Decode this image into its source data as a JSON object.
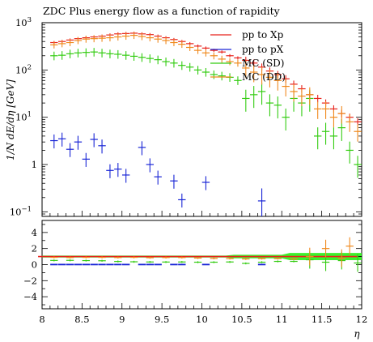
{
  "chart_data": [
    {
      "type": "scatter",
      "title": "ZDC Plus energy flow as a function of rapidity",
      "xlabel": "η",
      "ylabel": "1/N dE/dη [GeV]",
      "xlim": [
        8,
        12
      ],
      "ylim": [
        0.08,
        1000
      ],
      "yscale": "log",
      "x_ticks": [
        "8",
        "8.5",
        "9",
        "9.5",
        "10",
        "10.5",
        "11",
        "11.5",
        "12"
      ],
      "y_ticks": [
        "10^-1",
        "1",
        "10",
        "10^2",
        "10^3"
      ],
      "legend_position": "top-right",
      "series": [
        {
          "name": "pp to Xp",
          "color": "#e8231c",
          "x": [
            8.15,
            8.25,
            8.35,
            8.45,
            8.55,
            8.65,
            8.75,
            8.85,
            8.95,
            9.05,
            9.15,
            9.25,
            9.35,
            9.45,
            9.55,
            9.65,
            9.75,
            9.85,
            9.95,
            10.05,
            10.15,
            10.25,
            10.35,
            10.45,
            10.55,
            10.65,
            10.75,
            10.85,
            10.95,
            11.05,
            11.15,
            11.25,
            11.35,
            11.45,
            11.55,
            11.65,
            11.75,
            11.85,
            11.95
          ],
          "y": [
            380,
            400,
            430,
            460,
            480,
            500,
            520,
            550,
            580,
            590,
            600,
            580,
            560,
            520,
            480,
            440,
            400,
            360,
            320,
            290,
            260,
            240,
            200,
            180,
            160,
            140,
            115,
            95,
            80,
            65,
            50,
            40,
            30,
            25,
            20,
            15,
            12,
            10,
            8
          ]
        },
        {
          "name": "pp to pX",
          "color": "#1a26d6",
          "x": [
            8.15,
            8.25,
            8.35,
            8.45,
            8.55,
            8.65,
            8.75,
            8.85,
            8.95,
            9.05,
            9.25,
            9.35,
            9.45,
            9.65,
            9.75,
            10.05,
            10.75
          ],
          "y": [
            3.2,
            3.5,
            2.1,
            3.0,
            1.3,
            3.4,
            2.5,
            0.75,
            0.8,
            0.6,
            2.3,
            1.0,
            0.55,
            0.45,
            0.18,
            0.42,
            0.17
          ]
        },
        {
          "name": "MC (SD)",
          "color": "#33cc11",
          "x": [
            8.15,
            8.25,
            8.35,
            8.45,
            8.55,
            8.65,
            8.75,
            8.85,
            8.95,
            9.05,
            9.15,
            9.25,
            9.35,
            9.45,
            9.55,
            9.65,
            9.75,
            9.85,
            9.95,
            10.05,
            10.15,
            10.25,
            10.35,
            10.45,
            10.55,
            10.65,
            10.75,
            10.85,
            10.95,
            11.05,
            11.15,
            11.25,
            11.35,
            11.45,
            11.55,
            11.65,
            11.75,
            11.85,
            11.95
          ],
          "y": [
            200,
            205,
            220,
            230,
            235,
            240,
            230,
            220,
            215,
            205,
            195,
            185,
            175,
            165,
            150,
            140,
            125,
            115,
            100,
            90,
            80,
            75,
            70,
            60,
            25,
            30,
            35,
            20,
            18,
            10,
            25,
            20,
            25,
            4,
            5,
            4,
            6,
            2,
            1
          ]
        },
        {
          "name": "MC (DD)",
          "color": "#f08a1e",
          "x": [
            8.15,
            8.25,
            8.35,
            8.45,
            8.55,
            8.65,
            8.75,
            8.85,
            8.95,
            9.05,
            9.15,
            9.25,
            9.35,
            9.45,
            9.55,
            9.65,
            9.75,
            9.85,
            9.95,
            10.05,
            10.15,
            10.25,
            10.35,
            10.45,
            10.55,
            10.65,
            10.75,
            10.85,
            10.95,
            11.05,
            11.15,
            11.25,
            11.35,
            11.45,
            11.55,
            11.65,
            11.75,
            11.85,
            11.95
          ],
          "y": [
            340,
            360,
            380,
            420,
            450,
            460,
            470,
            480,
            500,
            520,
            540,
            510,
            480,
            450,
            420,
            380,
            350,
            300,
            260,
            230,
            200,
            170,
            150,
            140,
            110,
            90,
            80,
            70,
            60,
            45,
            35,
            28,
            30,
            15,
            15,
            10,
            12,
            8,
            5
          ]
        }
      ]
    },
    {
      "type": "scatter",
      "title": "",
      "xlabel": "η",
      "ylabel": "",
      "xlim": [
        8,
        12
      ],
      "ylim": [
        -5.5,
        5.5
      ],
      "y_ticks": [
        "-4",
        "-2",
        "0",
        "2",
        "4"
      ],
      "series": [
        {
          "name": "pp to Xp",
          "color": "#e8231c",
          "x": [
            8.15,
            8.55,
            8.95,
            9.35,
            9.75,
            10.15,
            10.55,
            10.95,
            11.35,
            11.75
          ],
          "y": [
            1,
            1,
            1,
            1,
            1,
            1,
            1,
            1,
            1,
            1
          ]
        },
        {
          "name": "pp to pX",
          "color": "#1a26d6",
          "x": [
            8.15,
            8.25,
            8.35,
            8.45,
            8.55,
            8.65,
            8.75,
            8.85,
            8.95,
            9.05,
            9.25,
            9.35,
            9.45,
            9.65,
            9.75,
            10.05,
            10.75
          ],
          "y": [
            0.01,
            0.01,
            0.01,
            0.01,
            0.01,
            0.01,
            0.01,
            0.01,
            0.01,
            0.01,
            0.01,
            0.01,
            0.01,
            0.01,
            0.01,
            0.01,
            0.01
          ]
        },
        {
          "name": "MC (SD)",
          "color": "#33cc11",
          "x": [
            8.15,
            8.35,
            8.55,
            8.75,
            8.95,
            9.15,
            9.35,
            9.55,
            9.75,
            9.95,
            10.15,
            10.35,
            10.55,
            10.75,
            10.95,
            11.15,
            11.35,
            11.55,
            11.75,
            11.95
          ],
          "y": [
            0.52,
            0.53,
            0.5,
            0.48,
            0.39,
            0.35,
            0.33,
            0.32,
            0.33,
            0.3,
            0.3,
            0.33,
            0.15,
            0.3,
            0.4,
            0.4,
            0.6,
            0.3,
            0.5,
            0.2
          ]
        },
        {
          "name": "MC (DD)",
          "color": "#f08a1e",
          "x": [
            8.15,
            8.35,
            8.55,
            8.75,
            8.95,
            9.15,
            9.35,
            9.55,
            9.75,
            9.95,
            10.15,
            10.35,
            10.55,
            10.75,
            10.95,
            11.15,
            11.35,
            11.55,
            11.75,
            11.85
          ],
          "y": [
            0.9,
            0.88,
            0.9,
            0.9,
            0.88,
            0.9,
            0.86,
            0.88,
            0.88,
            0.82,
            0.77,
            0.75,
            0.7,
            0.75,
            0.75,
            0.7,
            1.0,
            2.0,
            0.8,
            2.3
          ]
        }
      ]
    }
  ],
  "legend": {
    "entries": [
      {
        "label": "pp to Xp",
        "color": "#e8231c"
      },
      {
        "label": "pp to pX",
        "color": "#1a26d6"
      },
      {
        "label": "MC (SD)",
        "color": "#33cc11"
      },
      {
        "label": "MC (DD)",
        "color": "#f08a1e"
      }
    ]
  },
  "colors": {
    "band": "#33ee22",
    "axis": "#000000"
  }
}
